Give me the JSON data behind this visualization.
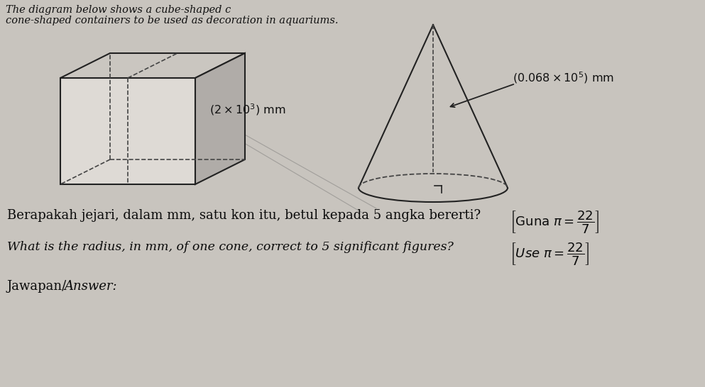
{
  "bg_color": "#c8c4be",
  "paper_color": "#d8d4ce",
  "title_line1": "The diagram below shows a cube-shaped c",
  "title_line2": "cone-shaped containers to be used as decoration in aquariums.",
  "cube_label": "(2 × 10³) mm",
  "cone_slant_label": "(0.068 × 10⁵) mm",
  "malay_text": "Berapakah jejari, dalam mm, satu kon itu, betul kepada 5 angka bererti?",
  "malay_bracket": "Guna π =",
  "english_text": "What is the radius, in mm, of one cone, correct to 5 significant figures?",
  "use_bracket": "Use π =",
  "answer_malay": "Jawapan/",
  "answer_eng": "Answer:"
}
